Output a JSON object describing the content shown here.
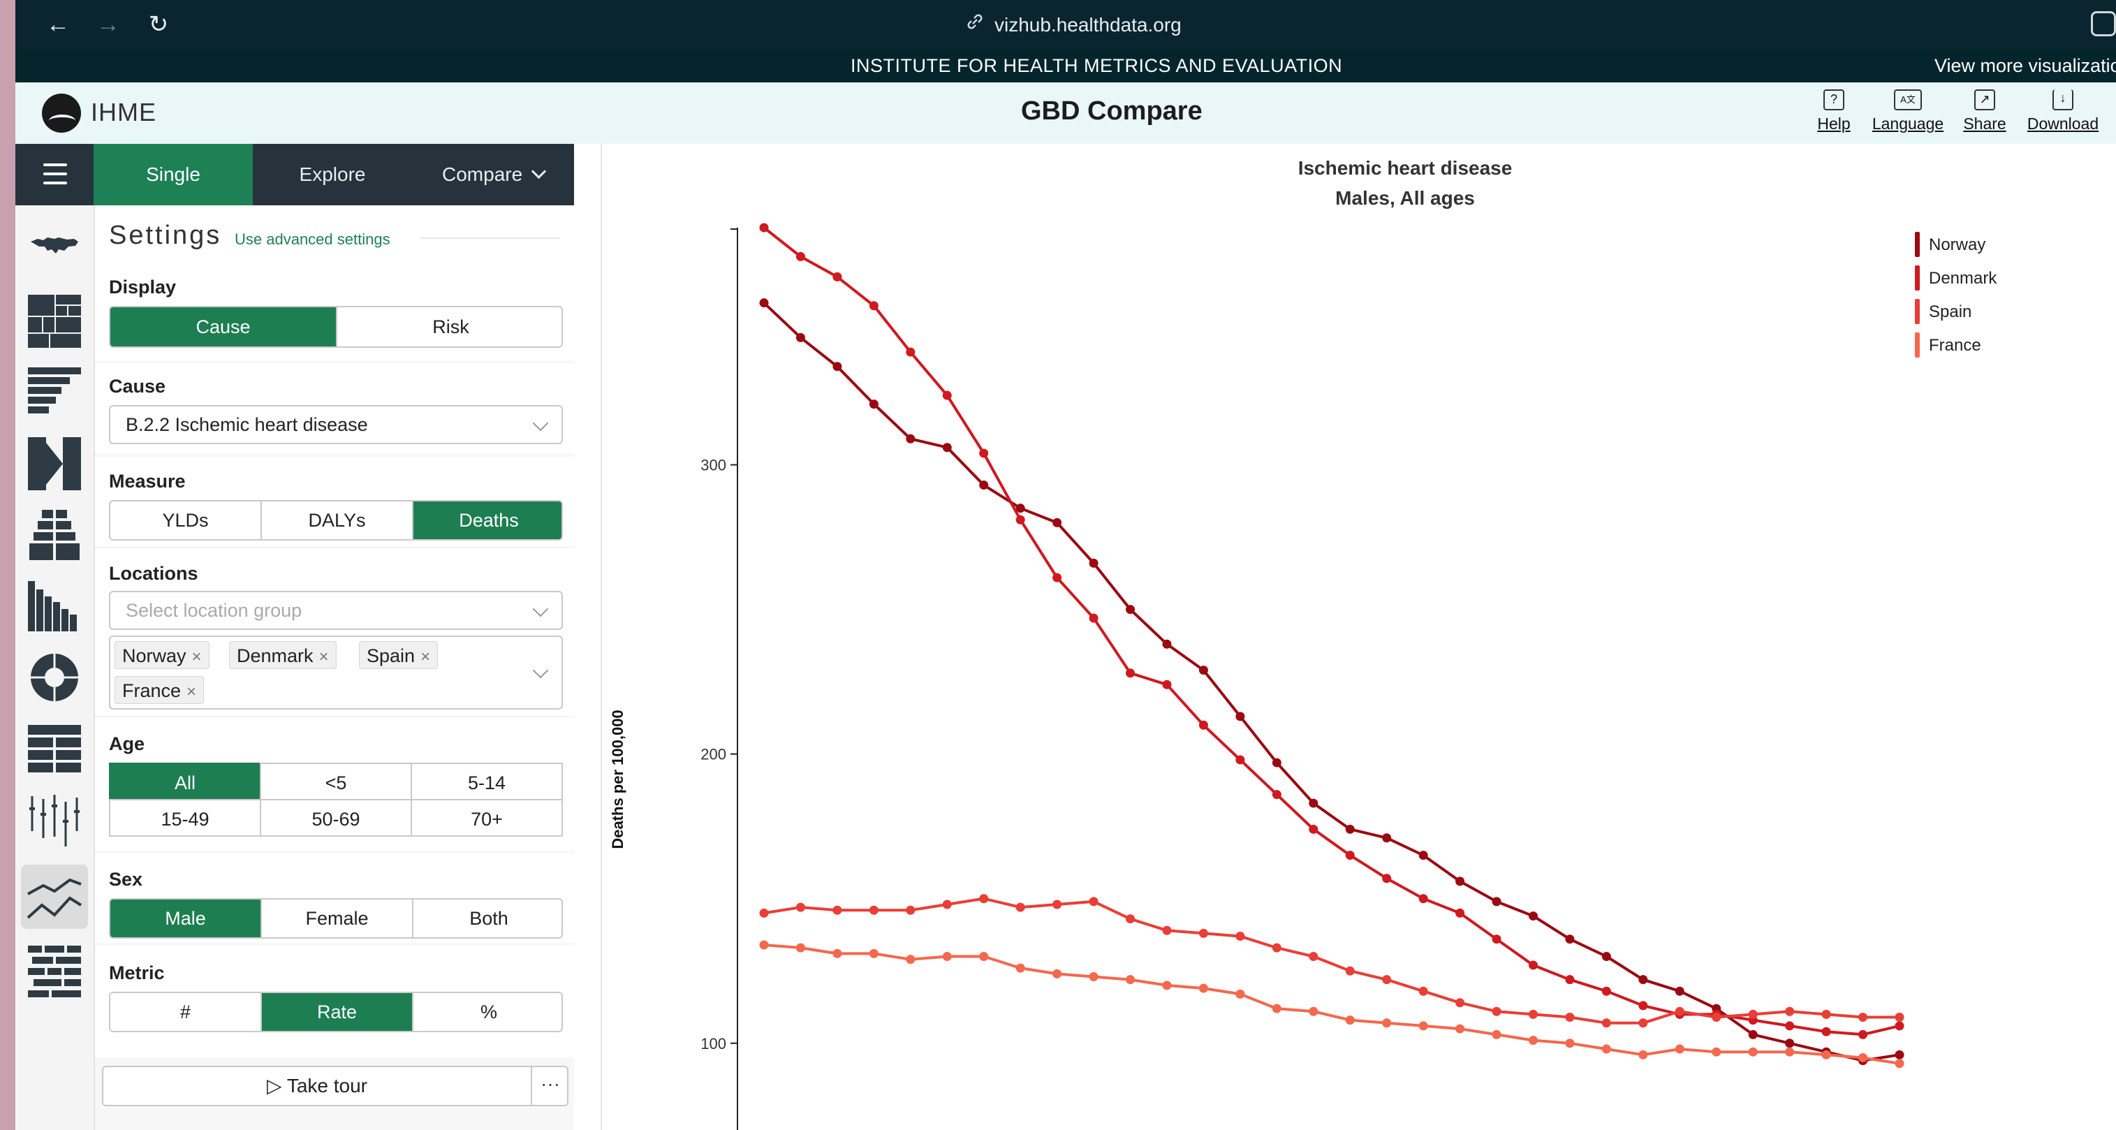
{
  "browser": {
    "back_icon": "←",
    "forward_icon": "→",
    "reload_icon": "↻",
    "url": "vizhub.healthdata.org"
  },
  "institute_bar": {
    "title": "INSTITUTE FOR HEALTH METRICS AND EVALUATION",
    "more": "View more visualizatio"
  },
  "header": {
    "logo_text": "IHME",
    "title": "GBD Compare",
    "links": [
      {
        "label": "Help",
        "icon": "help-icon"
      },
      {
        "label": "Language",
        "icon": "language-icon"
      },
      {
        "label": "Share",
        "icon": "share-icon"
      },
      {
        "label": "Download",
        "icon": "download-icon"
      }
    ]
  },
  "tabs": [
    {
      "label": "Single"
    },
    {
      "label": "Explore"
    },
    {
      "label": "Compare"
    }
  ],
  "settings": {
    "title": "Settings",
    "advanced": "Use advanced settings",
    "display": {
      "label": "Display",
      "options": [
        "Cause",
        "Risk"
      ],
      "selected": "Cause"
    },
    "cause": {
      "label": "Cause",
      "value": "B.2.2 Ischemic heart disease"
    },
    "measure": {
      "label": "Measure",
      "options": [
        "YLDs",
        "DALYs",
        "Deaths"
      ],
      "selected": "Deaths"
    },
    "locations": {
      "label": "Locations",
      "placeholder": "Select location group",
      "chips": [
        "Norway",
        "Denmark",
        "Spain",
        "France"
      ]
    },
    "age": {
      "label": "Age",
      "options": [
        "All",
        "<5",
        "5-14",
        "15-49",
        "50-69",
        "70+"
      ],
      "selected": "All"
    },
    "sex": {
      "label": "Sex",
      "options": [
        "Male",
        "Female",
        "Both"
      ],
      "selected": "Male"
    },
    "metric": {
      "label": "Metric",
      "options": [
        "#",
        "Rate",
        "%"
      ],
      "selected": "Rate"
    },
    "tour": "Take tour",
    "more": "···"
  },
  "chart_data": {
    "type": "line",
    "title": "Ischemic heart disease",
    "subtitle": "Males, All ages",
    "xlabel": "",
    "ylabel": "Deaths per 100,000",
    "yticks": [
      100,
      200,
      300
    ],
    "ylim": [
      70,
      382
    ],
    "x": [
      1,
      2,
      3,
      4,
      5,
      6,
      7,
      8,
      9,
      10,
      11,
      12,
      13,
      14,
      15,
      16,
      17,
      18,
      19,
      20,
      21,
      22,
      23,
      24,
      25,
      26,
      27,
      28,
      29,
      30,
      31,
      32
    ],
    "series": [
      {
        "name": "Norway",
        "color": "#9b0a12",
        "values": [
          356,
          344,
          334,
          321,
          309,
          306,
          293,
          285,
          280,
          266,
          250,
          238,
          229,
          213,
          197,
          183,
          174,
          171,
          165,
          156,
          149,
          144,
          136,
          130,
          122,
          118,
          112,
          103,
          100,
          97,
          94,
          96
        ]
      },
      {
        "name": "Denmark",
        "color": "#cf1a1f",
        "values": [
          382,
          372,
          365,
          355,
          339,
          324,
          304,
          281,
          261,
          247,
          228,
          224,
          210,
          198,
          186,
          174,
          165,
          157,
          150,
          145,
          136,
          127,
          122,
          118,
          113,
          110,
          110,
          108,
          106,
          104,
          103,
          106
        ]
      },
      {
        "name": "Spain",
        "color": "#e93e36",
        "values": [
          145,
          147,
          146,
          146,
          146,
          148,
          150,
          147,
          148,
          149,
          143,
          139,
          138,
          137,
          133,
          130,
          125,
          122,
          118,
          114,
          111,
          110,
          109,
          107,
          107,
          111,
          109,
          110,
          111,
          110,
          109,
          109
        ]
      },
      {
        "name": "France",
        "color": "#f4684d",
        "values": [
          134,
          133,
          131,
          131,
          129,
          130,
          130,
          126,
          124,
          123,
          122,
          120,
          119,
          117,
          112,
          111,
          108,
          107,
          106,
          105,
          103,
          101,
          100,
          98,
          96,
          98,
          97,
          97,
          97,
          96,
          95,
          93
        ]
      }
    ],
    "legend_position": "top-right",
    "grid": false
  }
}
